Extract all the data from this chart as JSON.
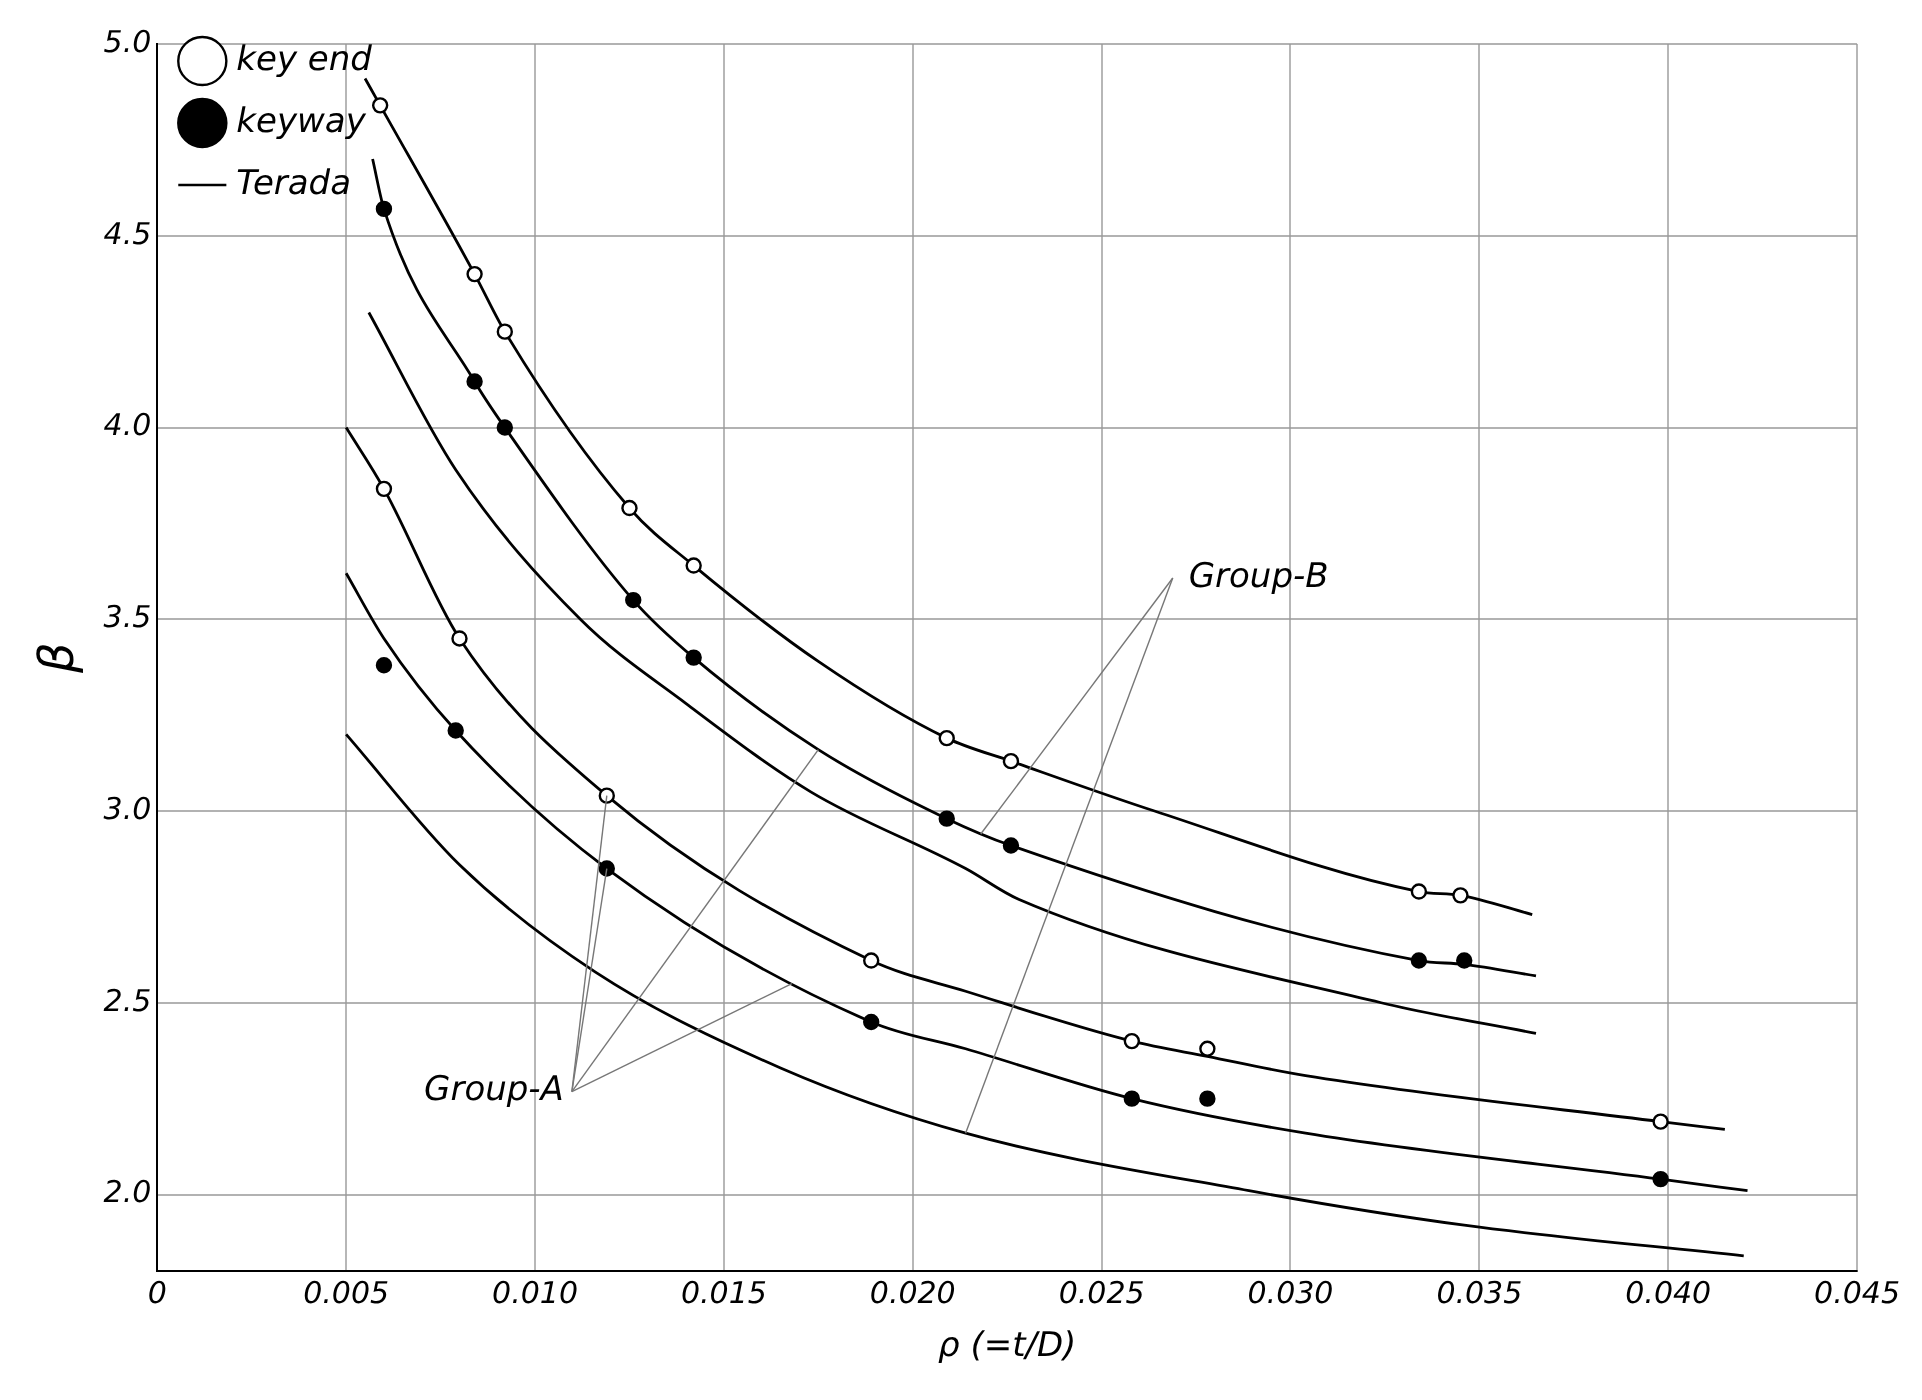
{
  "chart_data": {
    "type": "line",
    "xlabel": "ρ (=t/D)",
    "ylabel": "β",
    "xlim": [
      0,
      0.045
    ],
    "ylim": [
      1.8,
      5.0
    ],
    "xticks": [
      0,
      0.005,
      {
        "value": 0.01,
        "label": "0.010"
      },
      0.015,
      {
        "value": 0.02,
        "label": "0.020"
      },
      0.025,
      {
        "value": 0.03,
        "label": "0.030"
      },
      0.035,
      {
        "value": 0.04,
        "label": "0.040"
      },
      0.045
    ],
    "yticks": [
      {
        "value": 2,
        "label": "2.0"
      },
      2.5,
      {
        "value": 3,
        "label": "3.0"
      },
      3.5,
      {
        "value": 4,
        "label": "4.0"
      },
      4.5,
      {
        "value": 5,
        "label": "5.0"
      }
    ],
    "grid": true,
    "legend": "top",
    "line_style": "solid",
    "annotations": [
      {
        "text": "Group-A",
        "x": 0.0168,
        "y": 2.55
      },
      {
        "text": "Group-B",
        "x": 0.0218,
        "y": 2.94
      }
    ],
    "series": [
      {
        "name": "key end",
        "type": "scatter",
        "marker": "circle",
        "color": "#ffffff",
        "x": [
          0.0059,
          0.0084,
          0.0092,
          0.0125,
          0.0142,
          0.0209,
          0.0226,
          0.0334,
          0.0345,
          0.006,
          0.008,
          0.0119,
          0.0189,
          0.0258,
          0.0278,
          0.0398
        ],
        "values": [
          4.84,
          4.4,
          4.25,
          3.79,
          3.64,
          3.19,
          3.13,
          2.79,
          2.78,
          3.84,
          3.45,
          3.04,
          2.61,
          2.4,
          2.38,
          2.19
        ]
      },
      {
        "name": "keyway",
        "type": "scatter",
        "marker": "circle",
        "color": "#000000",
        "x": [
          0.006,
          0.0084,
          0.0092,
          0.0126,
          0.0142,
          0.0209,
          0.0226,
          0.0334,
          0.0346,
          0.006,
          0.0079,
          0.0119,
          0.0189,
          0.0258,
          0.0278,
          0.0398
        ],
        "values": [
          4.57,
          4.12,
          4.0,
          3.55,
          3.4,
          2.98,
          2.91,
          2.61,
          2.61,
          3.38,
          3.21,
          2.85,
          2.45,
          2.25,
          2.25,
          2.04
        ]
      },
      {
        "name": "Terada",
        "type": "line",
        "color": "#000000",
        "x": [
          0.0056,
          0.0079,
          0.0112,
          0.014,
          0.0173,
          0.0214,
          0.0228,
          0.0324,
          0.0365
        ],
        "values": [
          4.3,
          3.89,
          3.5,
          3.28,
          3.05,
          2.85,
          2.77,
          2.5,
          2.42
        ]
      },
      {
        "type": "line",
        "color": "#000000",
        "x": [
          0.005,
          0.008,
          0.0116,
          0.0165,
          0.0214,
          0.0289,
          0.0346,
          0.042
        ],
        "values": [
          3.2,
          2.86,
          2.58,
          2.33,
          2.16,
          2.01,
          1.92,
          1.84
        ]
      },
      {
        "type": "line",
        "color": "#000000",
        "x": [
          0.0055,
          0.0059,
          0.0084,
          0.0092,
          0.0125,
          0.0142,
          0.0175,
          0.0209,
          0.0226,
          0.0264,
          0.0334,
          0.0345,
          0.0364
        ],
        "values": [
          4.91,
          4.84,
          4.4,
          4.25,
          3.79,
          3.64,
          3.39,
          3.19,
          3.13,
          3.0,
          2.79,
          2.78,
          2.73
        ]
      },
      {
        "type": "line",
        "color": "#000000",
        "x": [
          0.0057,
          0.006,
          0.0084,
          0.0092,
          0.0126,
          0.0142,
          0.0175,
          0.0209,
          0.0226,
          0.0334,
          0.0346,
          0.0365
        ],
        "values": [
          4.7,
          4.57,
          4.12,
          4.0,
          3.55,
          3.4,
          3.16,
          2.98,
          2.91,
          2.61,
          2.6,
          2.57
        ]
      },
      {
        "type": "line",
        "color": "#000000",
        "x": [
          0.005,
          0.006,
          0.008,
          0.0119,
          0.0189,
          0.0214,
          0.0258,
          0.0278,
          0.0304,
          0.0398,
          0.0415
        ],
        "values": [
          4.0,
          3.84,
          3.45,
          3.04,
          2.61,
          2.53,
          2.4,
          2.36,
          2.31,
          2.19,
          2.17
        ]
      },
      {
        "type": "line",
        "color": "#000000",
        "x": [
          0.005,
          0.006,
          0.0079,
          0.0119,
          0.0189,
          0.0214,
          0.0258,
          0.0304,
          0.0398,
          0.0421
        ],
        "values": [
          3.62,
          3.45,
          3.21,
          2.85,
          2.45,
          2.38,
          2.25,
          2.16,
          2.04,
          2.01
        ]
      }
    ]
  }
}
